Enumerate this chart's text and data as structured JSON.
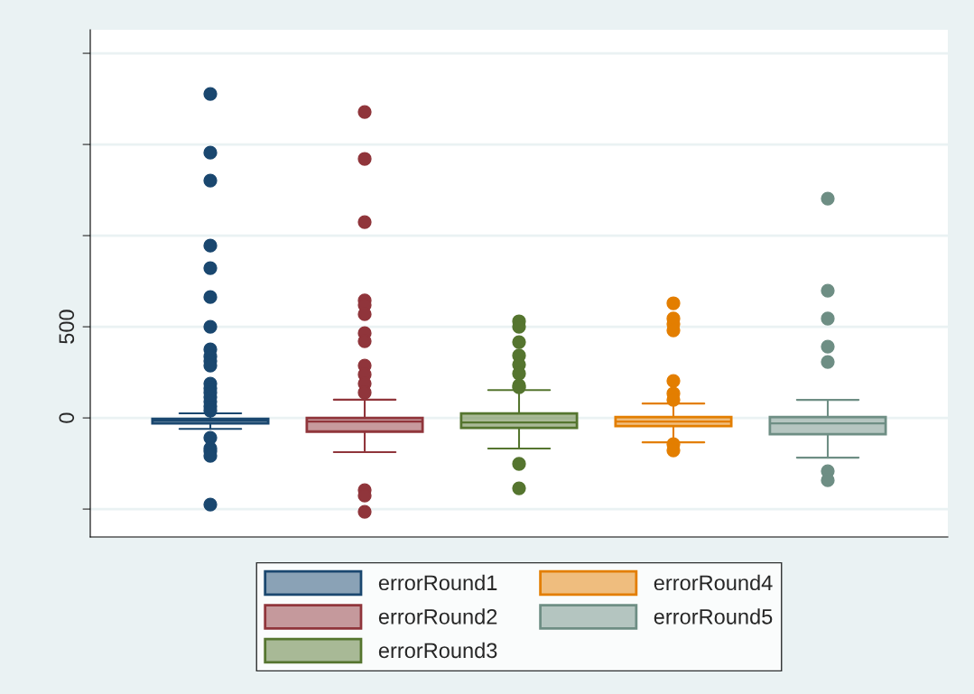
{
  "chart_data": {
    "type": "box",
    "categories": [
      null
    ],
    "series": [
      {
        "name": "errorRound1",
        "color": "#1a476f",
        "boxes": [
          {
            "low": -60,
            "q1": -30,
            "median": -15,
            "q3": -5,
            "high": 25,
            "outliers": [
              1777,
              1455,
              1302,
              945,
              822,
              663,
              500,
              376,
              337,
              312,
              287,
              188,
              163,
              139,
              114,
              89,
              64,
              40,
              -109,
              -168,
              -183,
              -208,
              -475
            ]
          }
        ]
      },
      {
        "name": "errorRound2",
        "color": "#90353b",
        "boxes": [
          {
            "low": -188,
            "q1": -75,
            "median": -20,
            "q3": 0,
            "high": 100,
            "outliers": [
              1678,
              1421,
              1074,
              644,
              619,
              569,
              465,
              421,
              287,
              238,
              188,
              139,
              -396,
              -426,
              -515
            ]
          }
        ]
      },
      {
        "name": "errorRound3",
        "color": "#55752f",
        "boxes": [
          {
            "low": -168,
            "q1": -55,
            "median": -25,
            "q3": 25,
            "high": 153,
            "outliers": [
              530,
              500,
              416,
              342,
              292,
              243,
              178,
              168,
              -252,
              -386
            ]
          }
        ]
      },
      {
        "name": "errorRound4",
        "color": "#e37e00",
        "boxes": [
          {
            "low": -134,
            "q1": -45,
            "median": -20,
            "q3": 5,
            "high": 79,
            "outliers": [
              629,
              545,
              515,
              480,
              203,
              134,
              99,
              -144,
              -178
            ]
          }
        ]
      },
      {
        "name": "errorRound5",
        "color": "#6e8e84",
        "boxes": [
          {
            "low": -218,
            "q1": -89,
            "median": -30,
            "q3": 5,
            "high": 99,
            "outliers": [
              1203,
              698,
              545,
              391,
              307,
              -292,
              -342
            ]
          }
        ]
      }
    ],
    "ylim": [
      -653,
      2129
    ],
    "yticks": [
      {
        "value": -500,
        "label": null
      },
      0,
      500,
      {
        "value": 1000,
        "label": null
      },
      {
        "value": 1500,
        "label": null
      },
      {
        "value": 2000,
        "label": null
      }
    ],
    "grid": "y",
    "legend": "bottom",
    "tick_labels": "y"
  }
}
